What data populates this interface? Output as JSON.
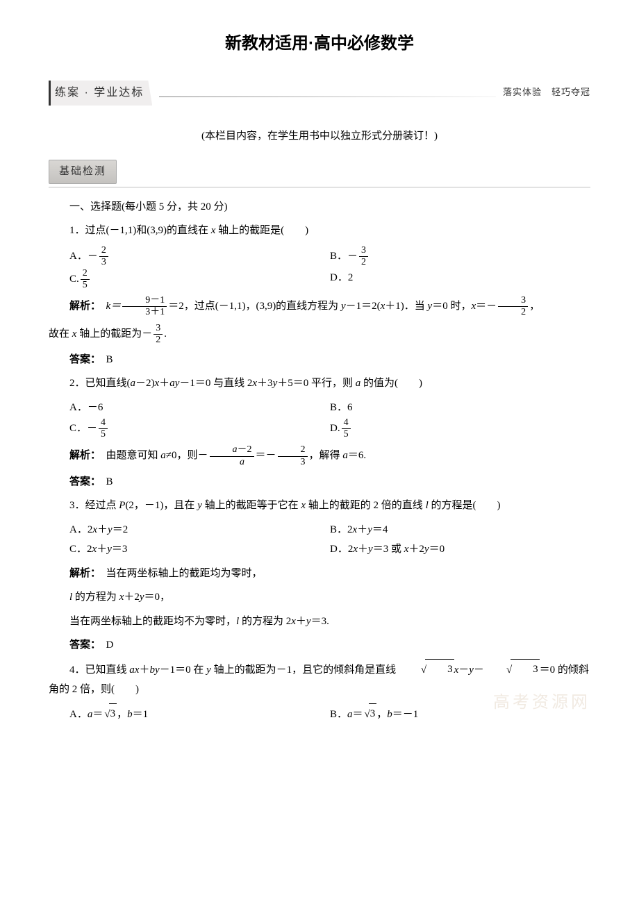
{
  "title": "新教材适用·高中必修数学",
  "banner": {
    "left": "练案 · 学业达标",
    "right": "落实体验　轻巧夺冠"
  },
  "subnote": "(本栏目内容，在学生用书中以独立形式分册装订！)",
  "section_badge": "基础检测",
  "part1_heading": "一、选择题(每小题 5 分，共 20 分)",
  "q1": {
    "stem_pre": "1．过点(－1,1)和(3,9)的直线在 ",
    "stem_var": "x",
    "stem_post": " 轴上的截距是(　　)",
    "A_pre": "A．－",
    "A_num": "2",
    "A_den": "3",
    "B_pre": "B．－",
    "B_num": "3",
    "B_den": "2",
    "C_pre": "C.",
    "C_num": "2",
    "C_den": "5",
    "D": "D．2",
    "sol_label": "解析：",
    "sol_k_lhs": "k＝",
    "sol_k_num": "9－1",
    "sol_k_den": "3＋1",
    "sol_k_eq": "＝2，过点(－1,1)，(3,9)的直线方程为 ",
    "sol_eq_y": "y",
    "sol_eq_mid": "－1＝2(",
    "sol_eq_x": "x",
    "sol_eq_end": "＋1)．当 ",
    "sol_when_y": "y",
    "sol_when_mid": "＝0 时，",
    "sol_when_x": "x",
    "sol_when_eq": "＝－",
    "sol_frac2_num": "3",
    "sol_frac2_den": "2",
    "sol_comma": "，",
    "sol_line2_pre": "故在 ",
    "sol_line2_x": "x",
    "sol_line2_mid": " 轴上的截距为－",
    "sol_line2_num": "3",
    "sol_line2_den": "2",
    "sol_line2_end": ".",
    "ans_label": "答案：",
    "ans": "B"
  },
  "q2": {
    "stem_pre": "2．已知直线(",
    "a1": "a",
    "stem_2": "－2)",
    "x": "x",
    "stem_3": "＋",
    "a2": "a",
    "y": "y",
    "stem_4": "－1＝0 与直线 2",
    "x2": "x",
    "stem_5": "＋3",
    "y2": "y",
    "stem_6": "＋5＝0 平行，则 ",
    "a3": "a",
    "stem_7": " 的值为(　　)",
    "A": "A．－6",
    "B": "B．6",
    "C_pre": "C．－",
    "C_num": "4",
    "C_den": "5",
    "D_pre": "D.",
    "D_num": "4",
    "D_den": "5",
    "sol_label": "解析：",
    "sol_pre": "由题意可知 ",
    "sa": "a",
    "sol_ne": "≠0，则－",
    "sol_f1_num_a": "a",
    "sol_f1_num_rest": "－2",
    "sol_f1_den": "a",
    "sol_eq": "＝－",
    "sol_f2_num": "2",
    "sol_f2_den": "3",
    "sol_post": "，解得 ",
    "sa2": "a",
    "sol_end": "＝6.",
    "ans_label": "答案：",
    "ans": "B"
  },
  "q3": {
    "stem_pre": "3．经过点 ",
    "P": "P",
    "stem_pt": "(2，－1)，且在 ",
    "y": "y",
    "stem_mid": " 轴上的截距等于它在 ",
    "x": "x",
    "stem_post": " 轴上的截距的 2 倍的直线 ",
    "l": "l",
    "stem_end": " 的方程是(　　)",
    "A_pre": "A．2",
    "A_x": "x",
    "A_mid": "＋",
    "A_y": "y",
    "A_end": "＝2",
    "B_pre": "B．2",
    "B_x": "x",
    "B_mid": "＋",
    "B_y": "y",
    "B_end": "＝4",
    "C_pre": "C．2",
    "C_x": "x",
    "C_mid": "＋",
    "C_y": "y",
    "C_end": "＝3",
    "D_pre": "D．2",
    "D_x1": "x",
    "D_mid1": "＋",
    "D_y1": "y",
    "D_mid2": "＝3 或 ",
    "D_x2": "x",
    "D_mid3": "＋2",
    "D_y2": "y",
    "D_end": "＝0",
    "sol_label": "解析：",
    "sol1": "当在两坐标轴上的截距均为零时，",
    "sol2_l": "l",
    "sol2_mid": " 的方程为 ",
    "sol2_x": "x",
    "sol2_plus": "＋2",
    "sol2_y": "y",
    "sol2_end": "＝0，",
    "sol3_pre": "当在两坐标轴上的截距均不为零时，",
    "sol3_l": "l",
    "sol3_mid": " 的方程为 2",
    "sol3_x": "x",
    "sol3_plus": "＋",
    "sol3_y": "y",
    "sol3_end": "＝3.",
    "ans_label": "答案：",
    "ans": "D"
  },
  "q4": {
    "stem_pre": "4．已知直线 ",
    "a": "a",
    "x": "x",
    "plus": "＋",
    "b": "b",
    "y": "y",
    "stem_mid": "－1＝0 在 ",
    "y2": "y",
    "stem_mid2": " 轴上的截距为－1，且它的倾斜角是直线 ",
    "sqrt1": "3",
    "x2": "x",
    "minus": "－",
    "y3": "y",
    "minus2": "－",
    "sqrt2": "3",
    "stem_end": "＝0 的倾斜角的 2 倍，则(　　)",
    "A_pre": "A．",
    "A_a": "a",
    "A_eq": "＝",
    "A_sqrt": "3",
    "A_mid": "，",
    "A_b": "b",
    "A_end": "＝1",
    "B_pre": "B．",
    "B_a": "a",
    "B_eq": "＝",
    "B_sqrt": "3",
    "B_mid": "，",
    "B_b": "b",
    "B_end": "＝－1"
  },
  "watermark": "高考资源网"
}
